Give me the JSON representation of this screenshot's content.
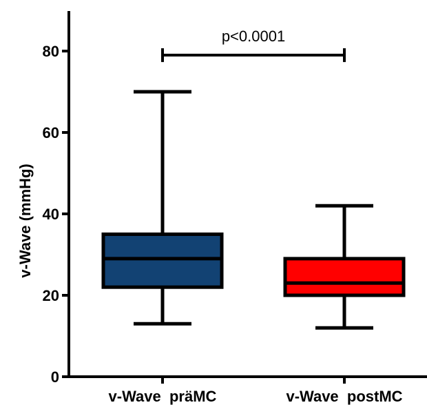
{
  "chart_data": {
    "type": "box",
    "ylabel": "v-Wave  (mmHg)",
    "ylim": [
      0,
      90
    ],
    "yticks": [
      0,
      20,
      40,
      60,
      80
    ],
    "grid": false,
    "categories": [
      "v-Wave  präMC",
      "v-Wave  postMC"
    ],
    "boxes": [
      {
        "category": "v-Wave  präMC",
        "min": 13,
        "q1": 22,
        "median": 29,
        "q3": 35,
        "max": 70,
        "color": "#124273"
      },
      {
        "category": "v-Wave  postMC",
        "min": 12,
        "q1": 20,
        "median": 23,
        "q3": 29,
        "max": 42,
        "color": "#ff0000"
      }
    ],
    "annotation": {
      "text": "p<0.0001",
      "y": 79
    }
  }
}
